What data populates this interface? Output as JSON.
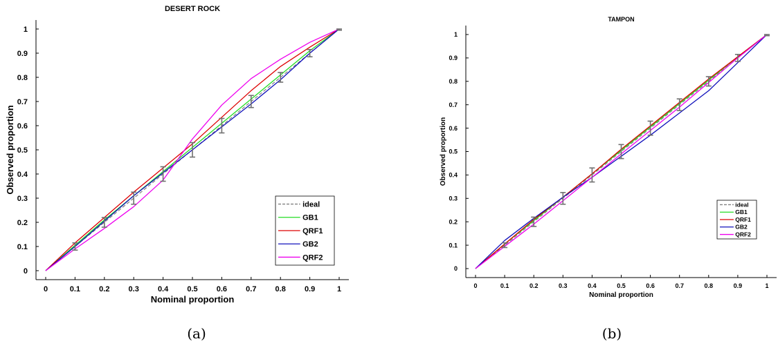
{
  "chart_data": [
    {
      "type": "line",
      "title": "DESERT ROCK",
      "xlabel": "Nominal proportion",
      "ylabel": "Observed proportion",
      "caption": "(a)",
      "xlim": [
        0,
        1
      ],
      "ylim": [
        0,
        1
      ],
      "x": [
        0,
        0.1,
        0.2,
        0.3,
        0.4,
        0.5,
        0.6,
        0.7,
        0.8,
        0.9,
        1
      ],
      "xticklabels": [
        "0",
        "0.1",
        "0.2",
        "0.3",
        "0.4",
        "0.5",
        "0.6",
        "0.7",
        "0.8",
        "0.9",
        "1"
      ],
      "yticks": [
        0,
        0.1,
        0.2,
        0.3,
        0.4,
        0.5,
        0.6,
        0.7,
        0.8,
        0.9,
        1
      ],
      "yticklabels": [
        "0",
        "0.1",
        "0.2",
        "0.3",
        "0.4",
        "0.5",
        "0.6",
        "0.7",
        "0.8",
        "0.9",
        "1"
      ],
      "legend_position": "lower-right",
      "series": [
        {
          "name": "ideal",
          "color": "#808080",
          "style": "dashed",
          "values": [
            0,
            0.1,
            0.2,
            0.3,
            0.4,
            0.5,
            0.6,
            0.7,
            0.8,
            0.9,
            1
          ]
        },
        {
          "name": "GB1",
          "color": "#22dd22",
          "style": "solid",
          "values": [
            0,
            0.105,
            0.21,
            0.31,
            0.41,
            0.51,
            0.61,
            0.71,
            0.81,
            0.91,
            1
          ]
        },
        {
          "name": "QRF1",
          "color": "#dd0000",
          "style": "solid",
          "values": [
            0,
            0.115,
            0.22,
            0.325,
            0.425,
            0.525,
            0.635,
            0.745,
            0.845,
            0.925,
            1
          ]
        },
        {
          "name": "GB2",
          "color": "#1010bb",
          "style": "solid",
          "values": [
            0,
            0.1,
            0.205,
            0.31,
            0.405,
            0.5,
            0.595,
            0.69,
            0.79,
            0.9,
            1
          ]
        },
        {
          "name": "QRF2",
          "color": "#ee00ee",
          "style": "solid",
          "values": [
            0,
            0.09,
            0.175,
            0.265,
            0.375,
            0.545,
            0.685,
            0.795,
            0.875,
            0.945,
            1
          ]
        }
      ],
      "error_bars": {
        "color": "#707070",
        "x": [
          0.1,
          0.2,
          0.3,
          0.4,
          0.5,
          0.6,
          0.7,
          0.8,
          0.9,
          1
        ],
        "low": [
          0.085,
          0.18,
          0.275,
          0.37,
          0.47,
          0.57,
          0.675,
          0.78,
          0.885,
          0.995
        ],
        "high": [
          0.115,
          0.22,
          0.325,
          0.43,
          0.53,
          0.63,
          0.725,
          0.82,
          0.915,
          1.0
        ]
      }
    },
    {
      "type": "line",
      "title": "TAMPON",
      "xlabel": "Nominal proportion",
      "ylabel": "Observed proportion",
      "caption": "(b)",
      "xlim": [
        0,
        1
      ],
      "ylim": [
        0,
        1
      ],
      "x": [
        0,
        0.1,
        0.2,
        0.3,
        0.4,
        0.5,
        0.6,
        0.7,
        0.8,
        0.9,
        1
      ],
      "xticklabels": [
        "0",
        "0.1",
        "0.2",
        "0.3",
        "0.4",
        "0.5",
        "0.6",
        "0.7",
        "0.8",
        "0.9",
        "1"
      ],
      "yticks": [
        0,
        0.1,
        0.2,
        0.3,
        0.4,
        0.5,
        0.6,
        0.7,
        0.8,
        0.9,
        1
      ],
      "yticklabels": [
        "0",
        "0.1",
        "0.2",
        "0.3",
        "0.4",
        "0.5",
        "0.6",
        "0.7",
        "0.8",
        "0.9",
        "1"
      ],
      "legend_position": "lower-right",
      "series": [
        {
          "name": "ideal",
          "color": "#808080",
          "style": "dashed",
          "values": [
            0,
            0.1,
            0.2,
            0.3,
            0.4,
            0.5,
            0.6,
            0.7,
            0.8,
            0.9,
            1
          ]
        },
        {
          "name": "GB1",
          "color": "#22dd22",
          "style": "solid",
          "values": [
            0,
            0.105,
            0.205,
            0.305,
            0.405,
            0.505,
            0.605,
            0.705,
            0.805,
            0.905,
            1
          ]
        },
        {
          "name": "QRF1",
          "color": "#dd0000",
          "style": "solid",
          "values": [
            0,
            0.105,
            0.21,
            0.305,
            0.405,
            0.51,
            0.61,
            0.71,
            0.81,
            0.905,
            1
          ]
        },
        {
          "name": "GB2",
          "color": "#1010bb",
          "style": "solid",
          "values": [
            0,
            0.12,
            0.215,
            0.305,
            0.39,
            0.48,
            0.57,
            0.665,
            0.76,
            0.88,
            1
          ]
        },
        {
          "name": "QRF2",
          "color": "#ee00ee",
          "style": "solid",
          "values": [
            0,
            0.095,
            0.19,
            0.29,
            0.39,
            0.49,
            0.59,
            0.69,
            0.795,
            0.9,
            1
          ]
        }
      ],
      "error_bars": {
        "color": "#707070",
        "x": [
          0.1,
          0.2,
          0.3,
          0.4,
          0.5,
          0.6,
          0.7,
          0.8,
          0.9,
          1
        ],
        "low": [
          0.09,
          0.18,
          0.275,
          0.37,
          0.47,
          0.57,
          0.675,
          0.78,
          0.885,
          0.995
        ],
        "high": [
          0.11,
          0.22,
          0.325,
          0.43,
          0.53,
          0.63,
          0.725,
          0.82,
          0.915,
          1.0
        ]
      }
    }
  ]
}
